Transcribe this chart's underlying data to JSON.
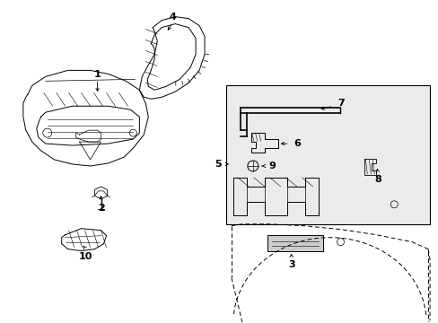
{
  "bg_color": "#ffffff",
  "line_color": "#000000",
  "fig_width": 4.89,
  "fig_height": 3.6,
  "dpi": 100,
  "gray_fill": "#d8d8d8",
  "light_gray": "#e8e8e8"
}
